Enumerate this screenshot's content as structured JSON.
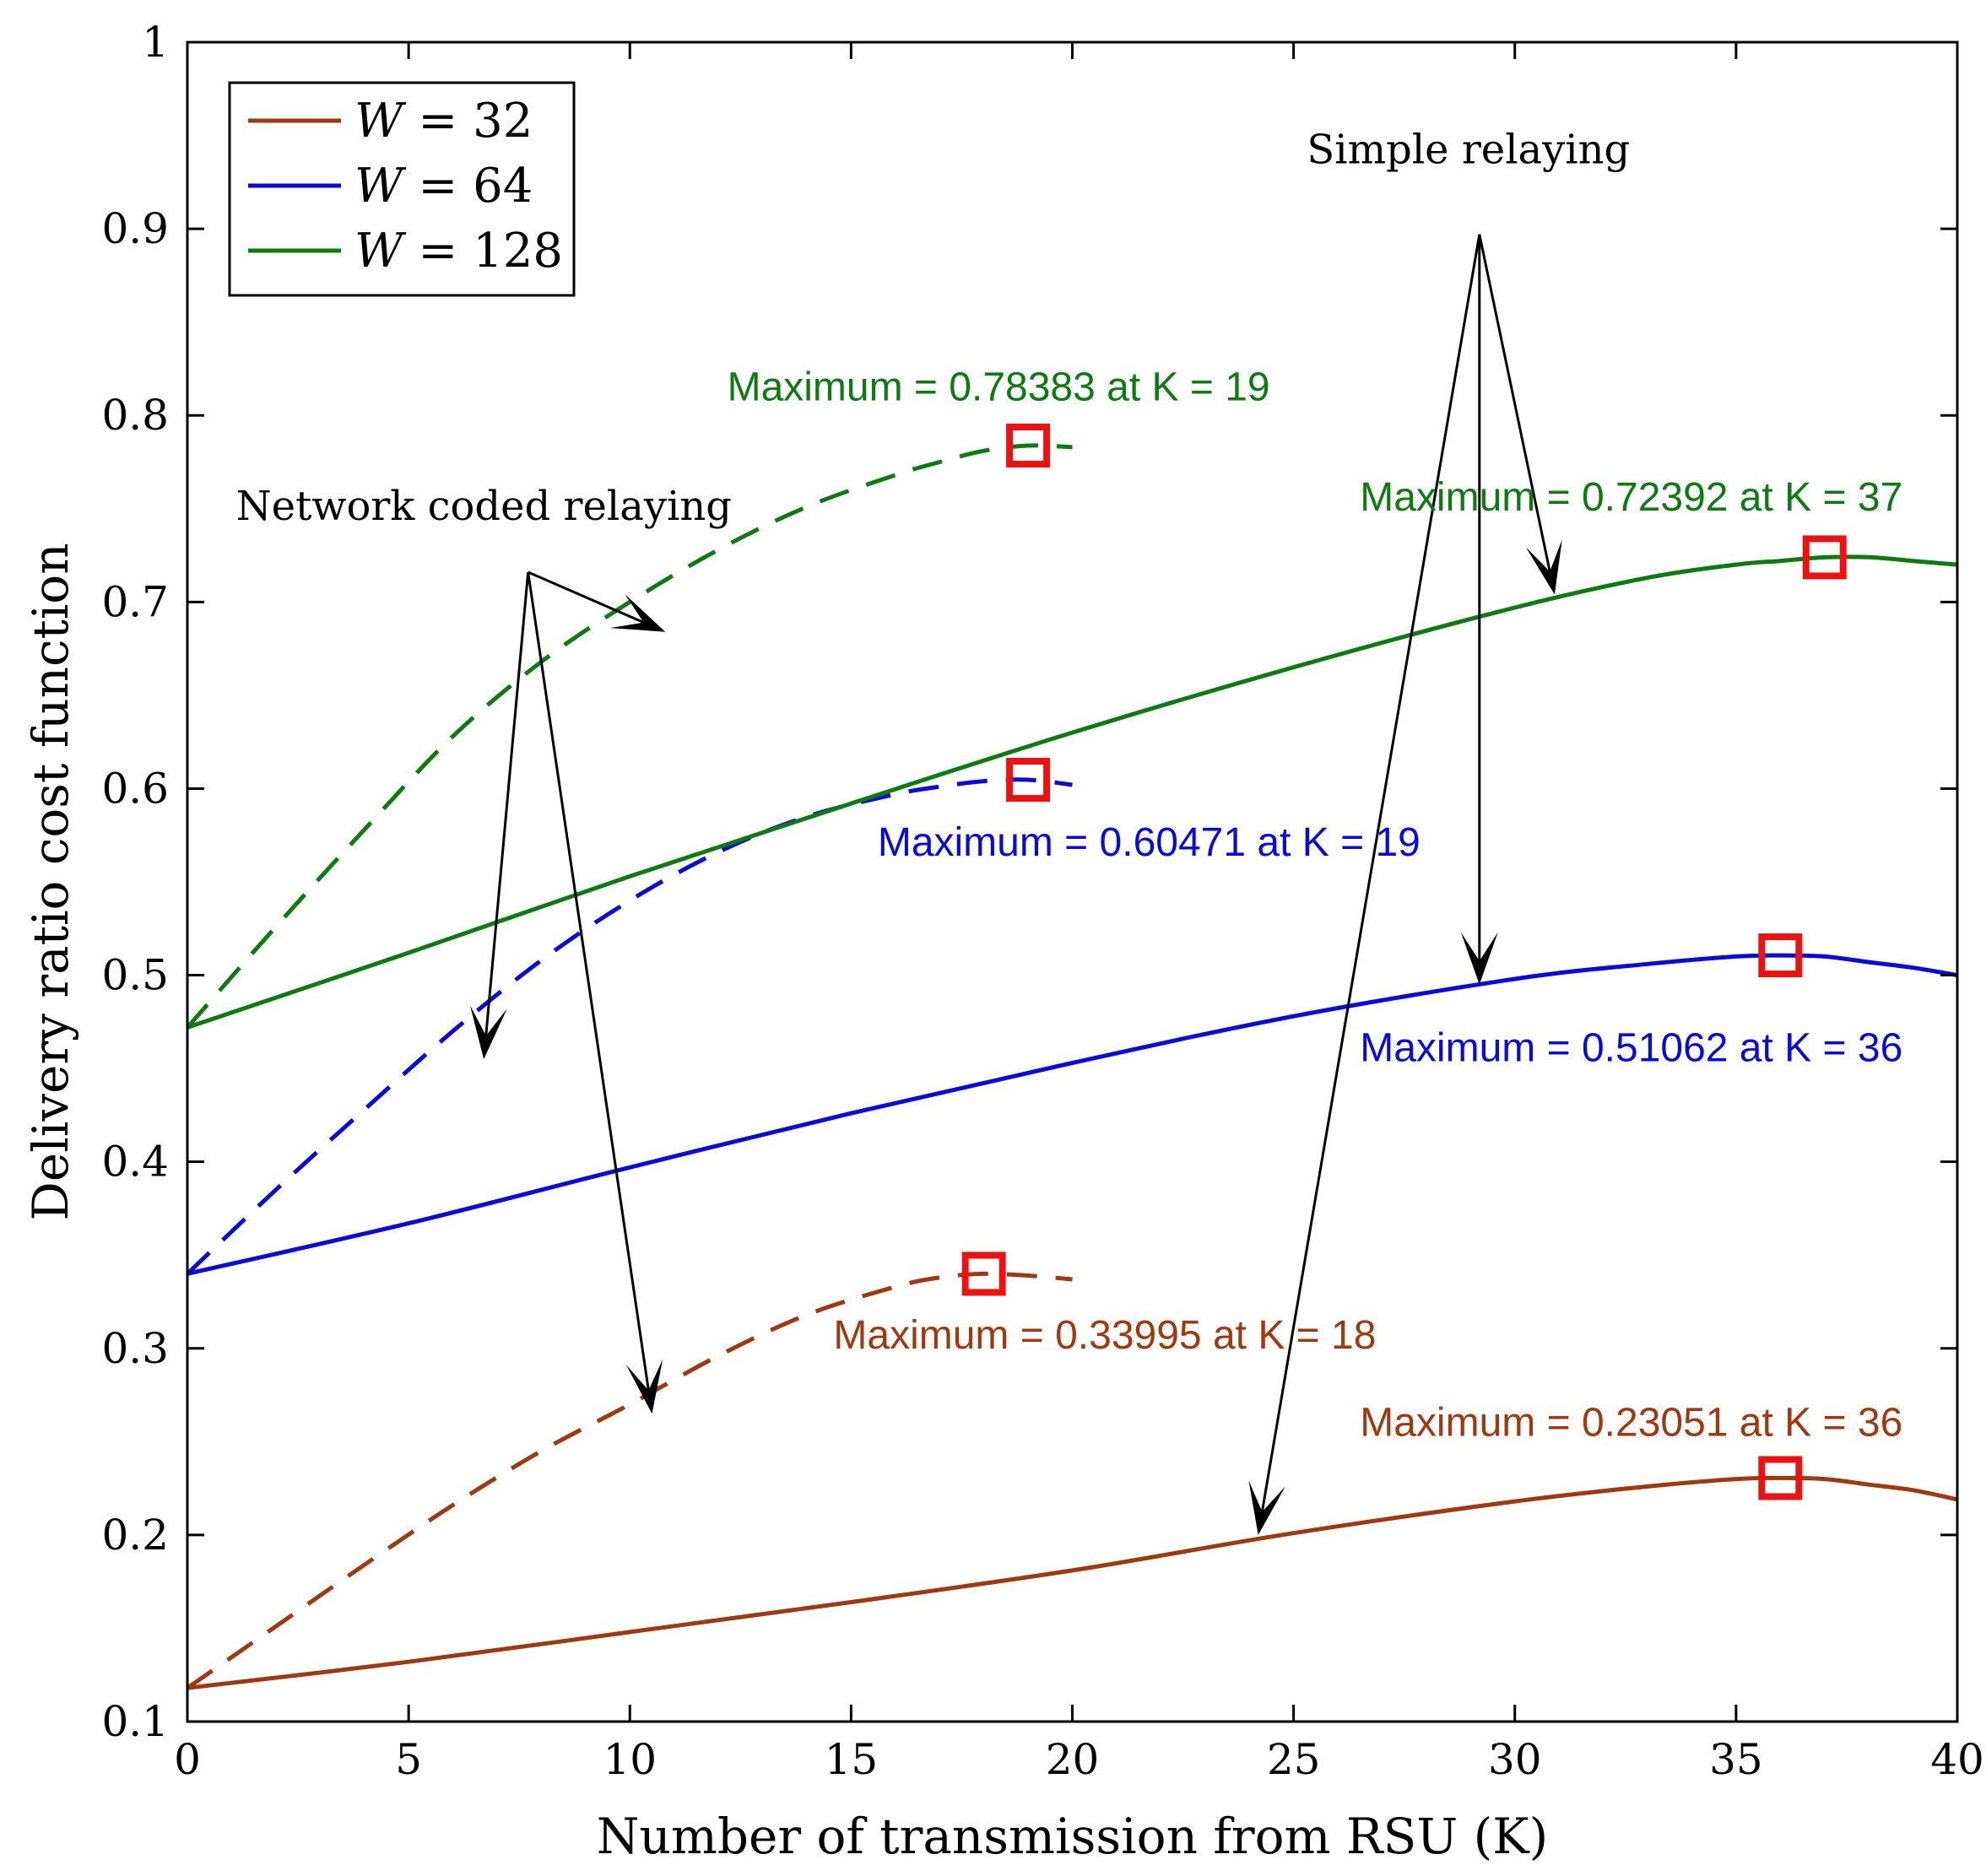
{
  "chart_data": {
    "type": "line",
    "xlabel": "Number of transmission from RSU (K)",
    "ylabel": "Delivery ratio cost function",
    "xlim": [
      0,
      40
    ],
    "ylim": [
      0.1,
      1
    ],
    "xticks": [
      "0",
      "5",
      "10",
      "15",
      "20",
      "25",
      "30",
      "35",
      "40"
    ],
    "yticks": [
      "0.1",
      "0.2",
      "0.3",
      "0.4",
      "0.5",
      "0.6",
      "0.7",
      "0.8",
      "0.9",
      "1"
    ],
    "grid": false,
    "legend": {
      "position": "top-left",
      "entries": [
        {
          "label": "W = 32",
          "var": "W",
          "rhs": "32",
          "color": "#A0390F"
        },
        {
          "label": "W = 64",
          "var": "W",
          "rhs": "64",
          "color": "#0A0ADC"
        },
        {
          "label": "W = 128",
          "var": "W",
          "rhs": "128",
          "color": "#0E7A12"
        }
      ]
    },
    "series": [
      {
        "name": "W = 128, Network coded relaying",
        "color": "#0E7A12",
        "style": "dashed",
        "x": [
          0,
          2,
          4,
          6,
          8,
          10,
          12,
          14,
          16,
          17,
          18,
          19,
          20
        ],
        "y": [
          0.472,
          0.526,
          0.578,
          0.628,
          0.668,
          0.7,
          0.728,
          0.751,
          0.768,
          0.775,
          0.781,
          0.78383,
          0.783
        ]
      },
      {
        "name": "W = 64, Network coded relaying",
        "color": "#0A0ADC",
        "style": "dashed",
        "x": [
          0,
          2,
          4,
          6,
          8,
          10,
          12,
          14,
          16,
          17,
          18,
          19,
          20
        ],
        "y": [
          0.34,
          0.385,
          0.428,
          0.47,
          0.508,
          0.54,
          0.566,
          0.585,
          0.597,
          0.601,
          0.604,
          0.60471,
          0.602
        ]
      },
      {
        "name": "W = 32, Network coded relaying",
        "color": "#A0390F",
        "style": "dashed",
        "x": [
          0,
          2,
          4,
          6,
          8,
          10,
          12,
          14,
          16,
          17,
          18,
          19,
          20
        ],
        "y": [
          0.118,
          0.151,
          0.184,
          0.216,
          0.245,
          0.27,
          0.296,
          0.318,
          0.333,
          0.338,
          0.33995,
          0.339,
          0.337
        ]
      },
      {
        "name": "W = 128, Simple relaying",
        "color": "#0E7A12",
        "style": "solid",
        "x": [
          0,
          5,
          10,
          15,
          20,
          25,
          30,
          33,
          35,
          36,
          37,
          38,
          39,
          40
        ],
        "y": [
          0.472,
          0.512,
          0.553,
          0.592,
          0.63,
          0.665,
          0.697,
          0.713,
          0.72,
          0.722,
          0.72392,
          0.724,
          0.722,
          0.72
        ]
      },
      {
        "name": "W = 64, Simple relaying",
        "color": "#0A0ADC",
        "style": "solid",
        "x": [
          0,
          5,
          10,
          15,
          20,
          25,
          30,
          33,
          35,
          36,
          37,
          38,
          39,
          40
        ],
        "y": [
          0.34,
          0.367,
          0.397,
          0.426,
          0.453,
          0.478,
          0.498,
          0.506,
          0.51,
          0.51062,
          0.51,
          0.507,
          0.504,
          0.5
        ]
      },
      {
        "name": "W = 32, Simple relaying",
        "color": "#A0390F",
        "style": "solid",
        "x": [
          0,
          5,
          10,
          15,
          20,
          25,
          30,
          33,
          35,
          36,
          37,
          38,
          39,
          40
        ],
        "y": [
          0.118,
          0.132,
          0.148,
          0.164,
          0.181,
          0.201,
          0.218,
          0.226,
          0.23,
          0.23051,
          0.23,
          0.227,
          0.224,
          0.219
        ]
      }
    ],
    "markers": [
      {
        "x": 19,
        "y": 0.78383,
        "color": "#EE1111"
      },
      {
        "x": 37,
        "y": 0.72392,
        "color": "#EE1111"
      },
      {
        "x": 19,
        "y": 0.60471,
        "color": "#EE1111"
      },
      {
        "x": 36,
        "y": 0.51062,
        "color": "#EE1111"
      },
      {
        "x": 18,
        "y": 0.33995,
        "color": "#EE1111"
      },
      {
        "x": 36,
        "y": 0.23051,
        "color": "#EE1111"
      }
    ],
    "annotations": [
      {
        "text": "Maximum = 0.78383 at K = 19",
        "color": "#0E7A12",
        "x": 12.2,
        "y": 0.808
      },
      {
        "text": "Maximum = 0.72392 at K = 37",
        "color": "#0E7A12",
        "x": 26.5,
        "y": 0.749
      },
      {
        "text": "Maximum = 0.60471 at K = 19",
        "color": "#0A0ADC",
        "x": 15.6,
        "y": 0.564
      },
      {
        "text": "Maximum = 0.51062 at K = 36",
        "color": "#0A0ADC",
        "x": 26.5,
        "y": 0.454
      },
      {
        "text": "Maximum = 0.33995 at K = 18",
        "color": "#A0390F",
        "x": 14.6,
        "y": 0.3
      },
      {
        "text": "Maximum = 0.23051 at K = 36",
        "color": "#A0390F",
        "x": 26.5,
        "y": 0.253
      }
    ],
    "group_labels": [
      {
        "text": "Network coded relaying",
        "x": 1.1,
        "y": 0.744
      },
      {
        "text": "Simple relaying",
        "x": 25.3,
        "y": 0.935
      }
    ],
    "arrows": [
      {
        "from": [
          7.7,
          0.716
        ],
        "to": [
          10.8,
          0.684
        ]
      },
      {
        "from": [
          7.7,
          0.716
        ],
        "to": [
          6.7,
          0.455
        ]
      },
      {
        "from": [
          7.7,
          0.716
        ],
        "to": [
          10.5,
          0.265
        ]
      },
      {
        "from": [
          29.2,
          0.897
        ],
        "to": [
          30.9,
          0.704
        ]
      },
      {
        "from": [
          29.2,
          0.897
        ],
        "to": [
          29.2,
          0.495
        ]
      },
      {
        "from": [
          29.2,
          0.897
        ],
        "to": [
          24.2,
          0.2
        ]
      }
    ]
  }
}
